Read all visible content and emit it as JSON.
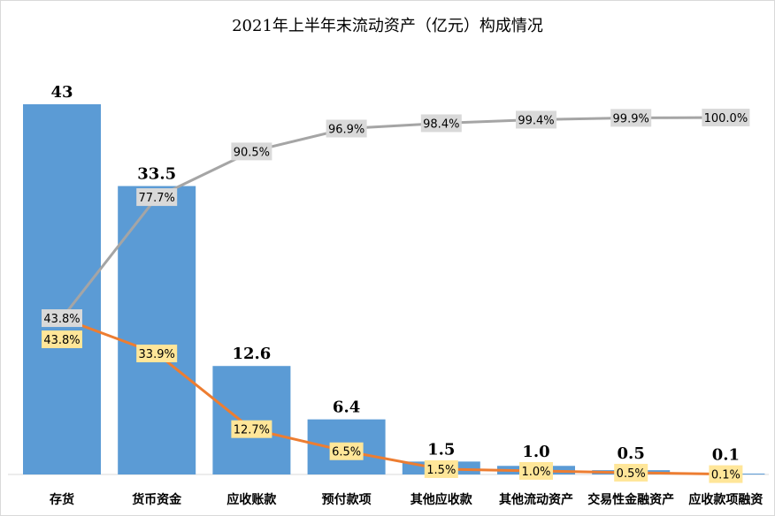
{
  "chart_data": {
    "type": "bar+line",
    "title": "2021年上半年末流动资产（亿元）构成情况",
    "categories": [
      "存货",
      "货币资金",
      "应收账款",
      "预付款项",
      "其他应收款",
      "其他流动资产",
      "交易性金融资产",
      "应收款项融资"
    ],
    "bar_values": [
      43,
      33.5,
      12.6,
      6.4,
      1.5,
      1.0,
      0.5,
      0.1
    ],
    "bar_labels": [
      "43",
      "33.5",
      "12.6",
      "6.4",
      "1.5",
      "1.0",
      "0.5",
      "0.1"
    ],
    "share_pct": [
      43.8,
      33.9,
      12.7,
      6.5,
      1.5,
      1.0,
      0.5,
      0.1
    ],
    "share_labels": [
      "43.8%",
      "33.9%",
      "12.7%",
      "6.5%",
      "1.5%",
      "1.0%",
      "0.5%",
      "0.1%"
    ],
    "cumulative_pct": [
      43.8,
      77.7,
      90.5,
      96.9,
      98.4,
      99.4,
      99.9,
      100.0
    ],
    "cumulative_labels": [
      "43.8%",
      "77.7%",
      "90.5%",
      "96.9%",
      "98.4%",
      "99.4%",
      "99.9%",
      "100.0%"
    ],
    "ylim": [
      0,
      43
    ],
    "y2lim": [
      0,
      100
    ],
    "grid": false,
    "legend": "none",
    "colors": {
      "bar": "#5b9bd5",
      "share_line": "#ed7d31",
      "cumulative_line": "#a5a5a5",
      "share_label_bg": "#ffe699",
      "cumulative_label_bg": "#d9d9d9"
    }
  }
}
